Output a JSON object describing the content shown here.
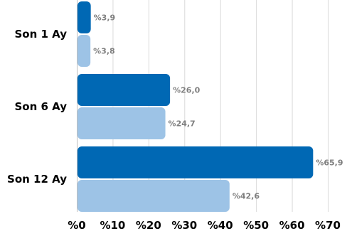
{
  "chart_data": {
    "type": "bar",
    "orientation": "horizontal",
    "categories": [
      "Son 1 Ay",
      "Son 6 Ay",
      "Son 12 Ay"
    ],
    "series": [
      {
        "values": [
          3.9,
          26.0,
          65.9
        ],
        "labels": [
          "%3,9",
          "%26,0",
          "%65,9"
        ],
        "color": "#0068b4"
      },
      {
        "values": [
          3.8,
          24.7,
          42.6
        ],
        "labels": [
          "%3,8",
          "%24,7",
          "%42,6"
        ],
        "color": "#9dc3e6"
      }
    ],
    "xlim": [
      0,
      70
    ],
    "x_ticks": [
      0,
      10,
      20,
      30,
      40,
      50,
      60,
      70
    ],
    "x_tick_labels": [
      "%0",
      "%10",
      "%20",
      "%30",
      "%40",
      "%50",
      "%60",
      "%70"
    ],
    "grid": true,
    "legend": "none",
    "title": "",
    "xlabel": "",
    "ylabel": ""
  }
}
